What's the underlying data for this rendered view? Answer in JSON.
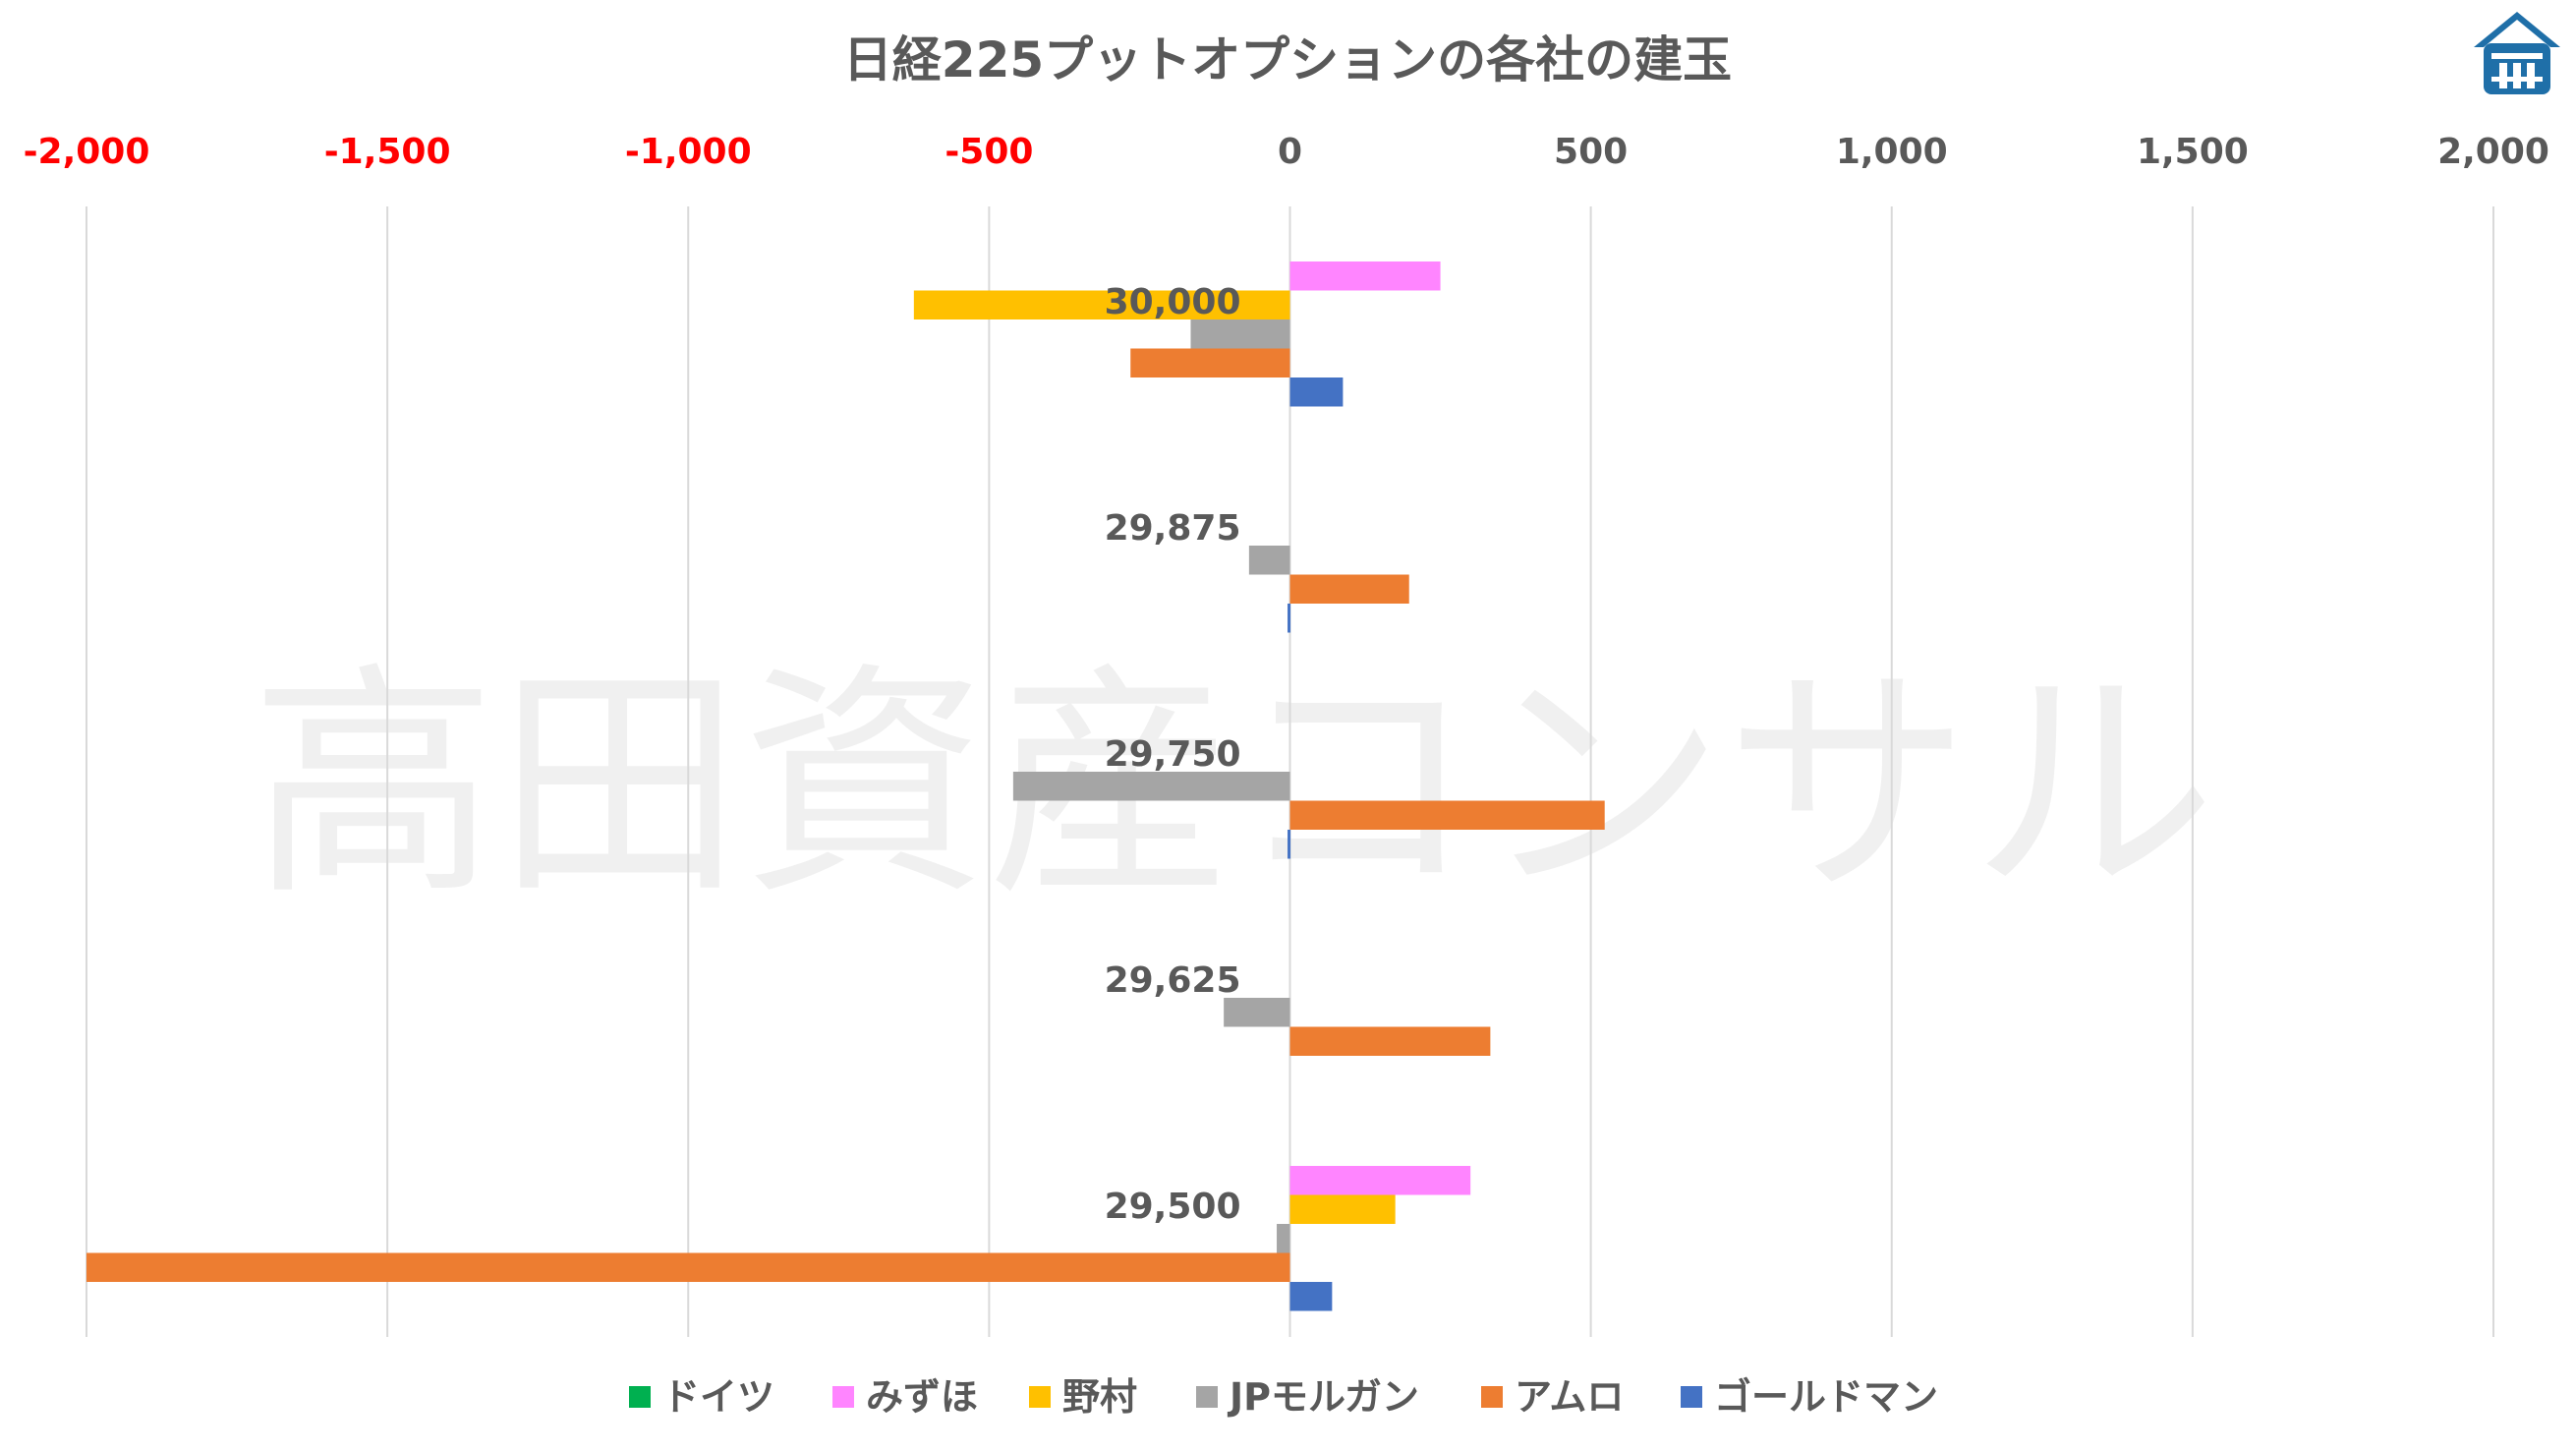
{
  "watermark": "高田資産コンサル",
  "logo": {
    "name": "house-logo-icon",
    "color": "#1f6fa8"
  },
  "chart_data": {
    "type": "bar",
    "orientation": "horizontal",
    "title": "日経225プットオプションの各社の建玉",
    "xlabel": "",
    "ylabel": "",
    "xlim": [
      -2000,
      2000
    ],
    "xticks": [
      -2000,
      -1500,
      -1000,
      -500,
      0,
      500,
      1000,
      1500,
      2000
    ],
    "xtick_labels": [
      "-2,000",
      "-1,500",
      "-1,000",
      "-500",
      "0",
      "500",
      "1,000",
      "1,500",
      "2,000"
    ],
    "negative_tick_color": "#ff0000",
    "positive_tick_color": "#595959",
    "x_axis_position": "top",
    "grid": true,
    "legend_position": "bottom",
    "categories": [
      "30,000",
      "29,875",
      "29,750",
      "29,625",
      "29,500"
    ],
    "series": [
      {
        "name": "ドイツ",
        "color": "#00b050",
        "values": [
          0,
          0,
          0,
          0,
          0
        ]
      },
      {
        "name": "みずほ",
        "color": "#ff85ff",
        "values": [
          250,
          0,
          0,
          0,
          300
        ]
      },
      {
        "name": "野村",
        "color": "#ffc000",
        "values": [
          -625,
          0,
          0,
          0,
          175
        ]
      },
      {
        "name": "JPモルガン",
        "color": "#a5a5a5",
        "values": [
          -165,
          -68,
          -460,
          -110,
          -22
        ]
      },
      {
        "name": "アムロ",
        "color": "#ed7d31",
        "values": [
          -265,
          198,
          523,
          333,
          -2000
        ]
      },
      {
        "name": "ゴールドマン",
        "color": "#4472c4",
        "values": [
          88,
          -4,
          -4,
          0,
          70
        ]
      }
    ]
  }
}
